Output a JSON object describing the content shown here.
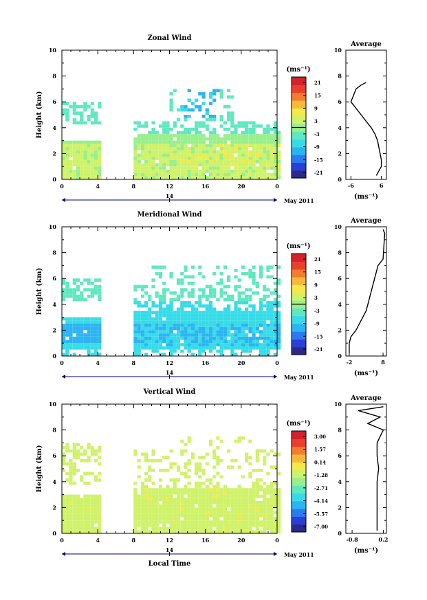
{
  "colorscale": [
    "#2a2a8a",
    "#2b3fd6",
    "#2b7bf0",
    "#2bb4f2",
    "#36dbe8",
    "#5fe8c0",
    "#98ef8c",
    "#cff26a",
    "#f5e94a",
    "#f7b937",
    "#f47d2d",
    "#e9402b",
    "#d2222d"
  ],
  "date_label": "May 2011",
  "day_label": "14",
  "xlabel": "Local Time",
  "panels": [
    {
      "name": "zonal",
      "title": "Zonal Wind",
      "ylabel": "Height (km)",
      "yticks": [
        "0",
        "2",
        "4",
        "6",
        "8",
        "10"
      ],
      "xticks": [
        "0",
        "4",
        "8",
        "12",
        "16",
        "20",
        "0"
      ],
      "units": "(ms⁻¹)",
      "colorbar_ticks": [
        "21",
        "15",
        "9",
        "3",
        "-3",
        "-9",
        "-15",
        "-21"
      ],
      "average_title": "Average",
      "average_xticks": [
        "-6",
        "6"
      ],
      "average_xlabel": "(ms⁻¹)",
      "chart_data": {
        "type": "heatmap",
        "title": "Zonal Wind",
        "xlabel": "",
        "ylabel": "Height (km)",
        "xlim": [
          0,
          24
        ],
        "ylim": [
          0,
          10
        ],
        "zlim": [
          -24,
          24
        ],
        "data_gap_hours": [
          4,
          7.7
        ],
        "profile": {
          "title": "Average",
          "xlim": [
            -8,
            8
          ],
          "height": [
            0.3,
            1,
            1.5,
            2,
            2.5,
            3,
            3.5,
            4,
            4.5,
            5,
            5.5,
            6,
            6.5,
            7,
            7.3,
            7.5
          ],
          "value": [
            4,
            6,
            6,
            5.5,
            5,
            4.5,
            3.5,
            2,
            0,
            -2,
            -4,
            -6,
            -5,
            -4,
            -2,
            0
          ]
        }
      }
    },
    {
      "name": "meridional",
      "title": "Meridional Wind",
      "ylabel": "Height (km)",
      "yticks": [
        "0",
        "2",
        "4",
        "6",
        "8",
        "10"
      ],
      "xticks": [
        "0",
        "4",
        "8",
        "12",
        "16",
        "20",
        "0"
      ],
      "units": "(ms⁻¹)",
      "colorbar_ticks": [
        "21",
        "15",
        "9",
        "3",
        "-3",
        "-9",
        "-15",
        "-21"
      ],
      "average_title": "Average",
      "average_xticks": [
        "-2",
        "8"
      ],
      "average_xlabel": "(ms⁻¹)",
      "chart_data": {
        "type": "heatmap",
        "title": "Meridional Wind",
        "xlabel": "",
        "ylabel": "Height (km)",
        "xlim": [
          0,
          24
        ],
        "ylim": [
          0,
          10
        ],
        "zlim": [
          -24,
          24
        ],
        "data_gap_hours": [
          4,
          7.7
        ],
        "profile": {
          "title": "Average",
          "xlim": [
            -3,
            9
          ],
          "height": [
            0.2,
            1,
            1.5,
            2,
            2.5,
            3,
            3.5,
            4,
            4.5,
            5,
            5.5,
            6,
            6.5,
            7,
            7.5,
            9.5,
            9.8
          ],
          "value": [
            -2,
            -2,
            -1.5,
            0,
            1,
            2,
            3,
            3.5,
            4,
            4.5,
            5,
            5.5,
            6,
            6.5,
            8,
            8.5,
            8
          ]
        }
      }
    },
    {
      "name": "vertical",
      "title": "Vertical Wind",
      "ylabel": "Height (km)",
      "yticks": [
        "0",
        "2",
        "4",
        "6",
        "8",
        "10"
      ],
      "xticks": [
        "0",
        "4",
        "8",
        "12",
        "16",
        "20",
        "0"
      ],
      "units": "(ms⁻¹)",
      "colorbar_ticks": [
        "3.00",
        "1.57",
        "0.14",
        "-1.28",
        "-2.71",
        "-4.14",
        "-5.57",
        "-7.00"
      ],
      "average_title": "Average",
      "average_xticks": [
        "-0.8",
        "0.2"
      ],
      "average_xlabel": "(ms⁻¹)",
      "chart_data": {
        "type": "heatmap",
        "title": "Vertical Wind",
        "xlabel": "Local Time",
        "ylabel": "Height (km)",
        "xlim": [
          0,
          24
        ],
        "ylim": [
          0,
          10
        ],
        "zlim": [
          -8,
          4
        ],
        "data_gap_hours": [
          4,
          7.7
        ],
        "profile": {
          "title": "Average",
          "xlim": [
            -1,
            0.3
          ],
          "height": [
            0.2,
            1,
            2,
            3,
            4,
            5,
            6,
            7,
            7.5,
            8,
            8.5,
            9,
            9.5,
            9.8
          ],
          "value": [
            0,
            0,
            0,
            0,
            0,
            0.05,
            0,
            0,
            0.1,
            0.2,
            -0.3,
            0.1,
            -0.6,
            0.2
          ]
        }
      }
    }
  ]
}
